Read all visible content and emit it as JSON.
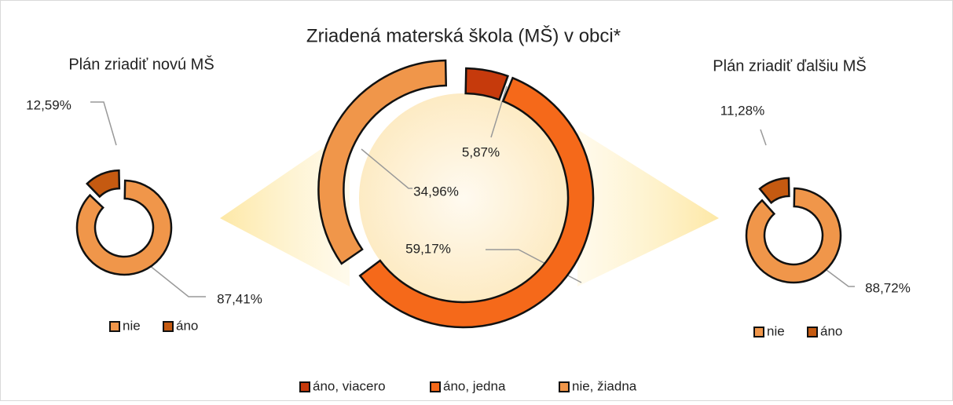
{
  "chart_data": [
    {
      "type": "pie",
      "donut": true,
      "title": "Plán zriadiť novú MŠ",
      "categories": [
        "nie",
        "áno"
      ],
      "values": [
        87.41,
        12.59
      ],
      "value_labels": [
        "87,41%",
        "12,59%"
      ],
      "colors": [
        "#f0964a",
        "#c55a11"
      ]
    },
    {
      "type": "pie",
      "donut": true,
      "title": "Zriadená materská škola (MŠ) v obci*",
      "categories": [
        "áno, viacero",
        "áno, jedna",
        "nie, žiadna"
      ],
      "values": [
        5.87,
        59.17,
        34.96
      ],
      "value_labels": [
        "5,87%",
        "59,17%",
        "34,96%"
      ],
      "colors": [
        "#c63a0c",
        "#f5691a",
        "#f0964a"
      ]
    },
    {
      "type": "pie",
      "donut": true,
      "title": "Plán zriadiť ďalšiu MŠ",
      "categories": [
        "nie",
        "áno"
      ],
      "values": [
        88.72,
        11.28
      ],
      "value_labels": [
        "88,72%",
        "11,28%"
      ],
      "colors": [
        "#f0964a",
        "#c55a11"
      ]
    }
  ]
}
